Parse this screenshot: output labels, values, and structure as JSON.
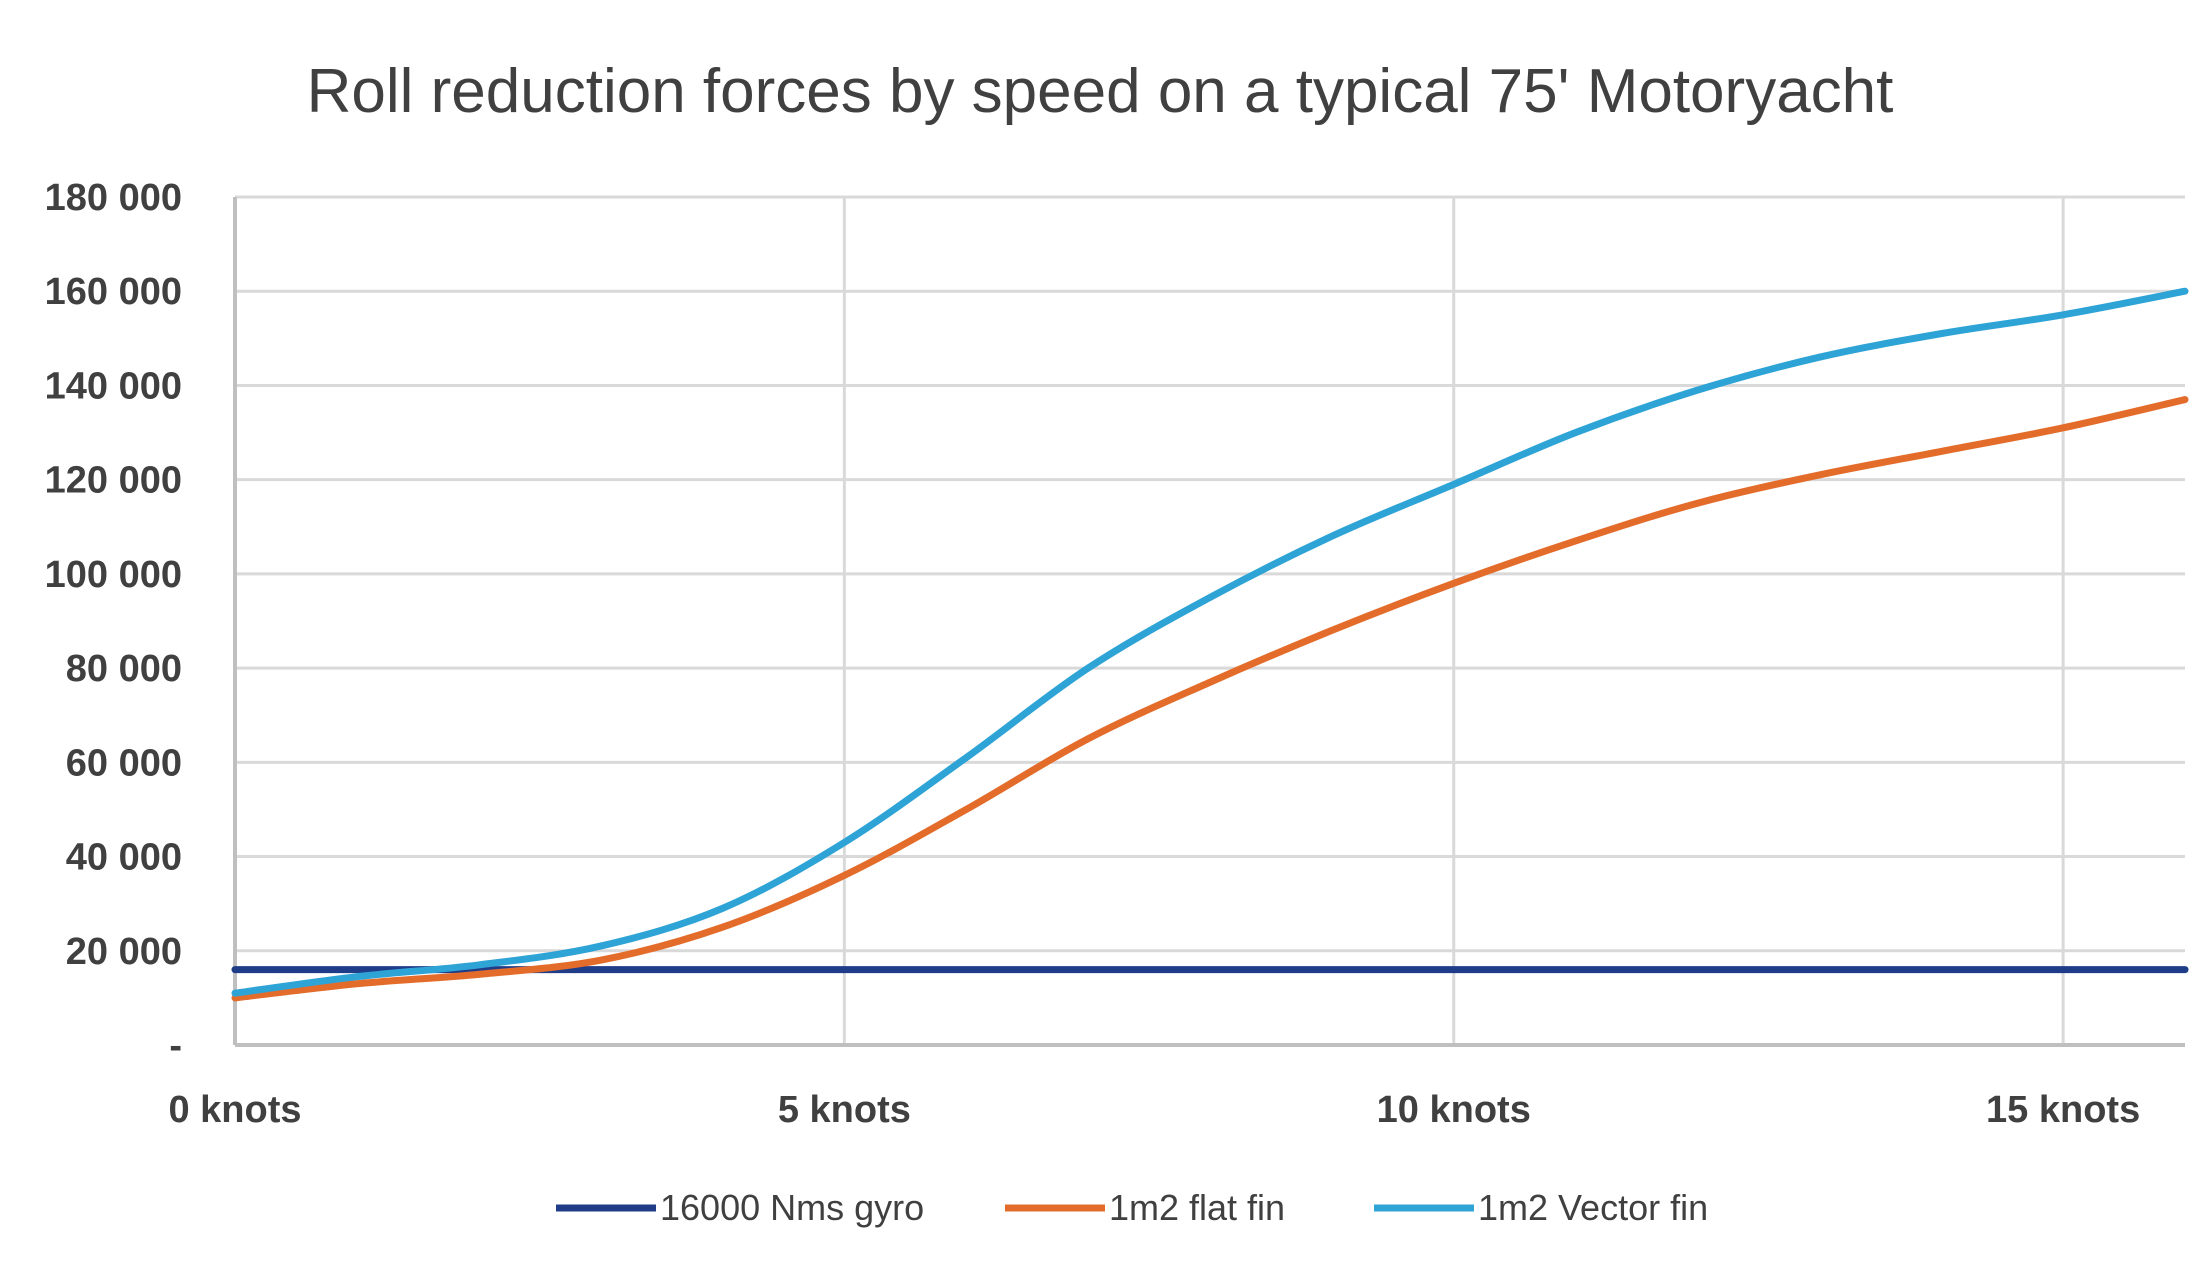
{
  "chart_data": {
    "type": "line",
    "title": "Roll reduction forces by speed on a typical 75' Motoryacht",
    "xlabel": "",
    "ylabel": "",
    "x": [
      0,
      1,
      2,
      3,
      4,
      5,
      6,
      7,
      8,
      9,
      10,
      11,
      12,
      13,
      14,
      15,
      16
    ],
    "xlim": [
      0,
      16
    ],
    "ylim": [
      0,
      180000
    ],
    "grid": true,
    "legend_position": "bottom",
    "x_ticks": [
      {
        "value": 0,
        "label": "0 knots"
      },
      {
        "value": 5,
        "label": "5 knots"
      },
      {
        "value": 10,
        "label": "10 knots"
      },
      {
        "value": 15,
        "label": "15 knots"
      }
    ],
    "y_ticks": [
      {
        "value": 0,
        "label": "-"
      },
      {
        "value": 20000,
        "label": "20 000"
      },
      {
        "value": 40000,
        "label": "40 000"
      },
      {
        "value": 60000,
        "label": "60 000"
      },
      {
        "value": 80000,
        "label": "80 000"
      },
      {
        "value": 100000,
        "label": "100 000"
      },
      {
        "value": 120000,
        "label": "120 000"
      },
      {
        "value": 140000,
        "label": "140 000"
      },
      {
        "value": 160000,
        "label": "160 000"
      },
      {
        "value": 180000,
        "label": "180 000"
      }
    ],
    "series": [
      {
        "name": "16000 Nms gyro",
        "color": "#1F3C88",
        "values": [
          16000,
          16000,
          16000,
          16000,
          16000,
          16000,
          16000,
          16000,
          16000,
          16000,
          16000,
          16000,
          16000,
          16000,
          16000,
          16000,
          16000
        ]
      },
      {
        "name": "1m2 flat fin",
        "color": "#E36C2B",
        "values": [
          10000,
          13000,
          15000,
          18000,
          25000,
          36000,
          50000,
          65000,
          77000,
          88000,
          98000,
          107000,
          115000,
          121000,
          126000,
          131000,
          137000
        ]
      },
      {
        "name": "1m2 Vector fin",
        "color": "#2EA3D6",
        "values": [
          11000,
          14500,
          17000,
          21000,
          29000,
          43000,
          61000,
          80000,
          95000,
          108000,
          119000,
          130000,
          139000,
          146000,
          151000,
          155000,
          160000
        ]
      }
    ]
  }
}
